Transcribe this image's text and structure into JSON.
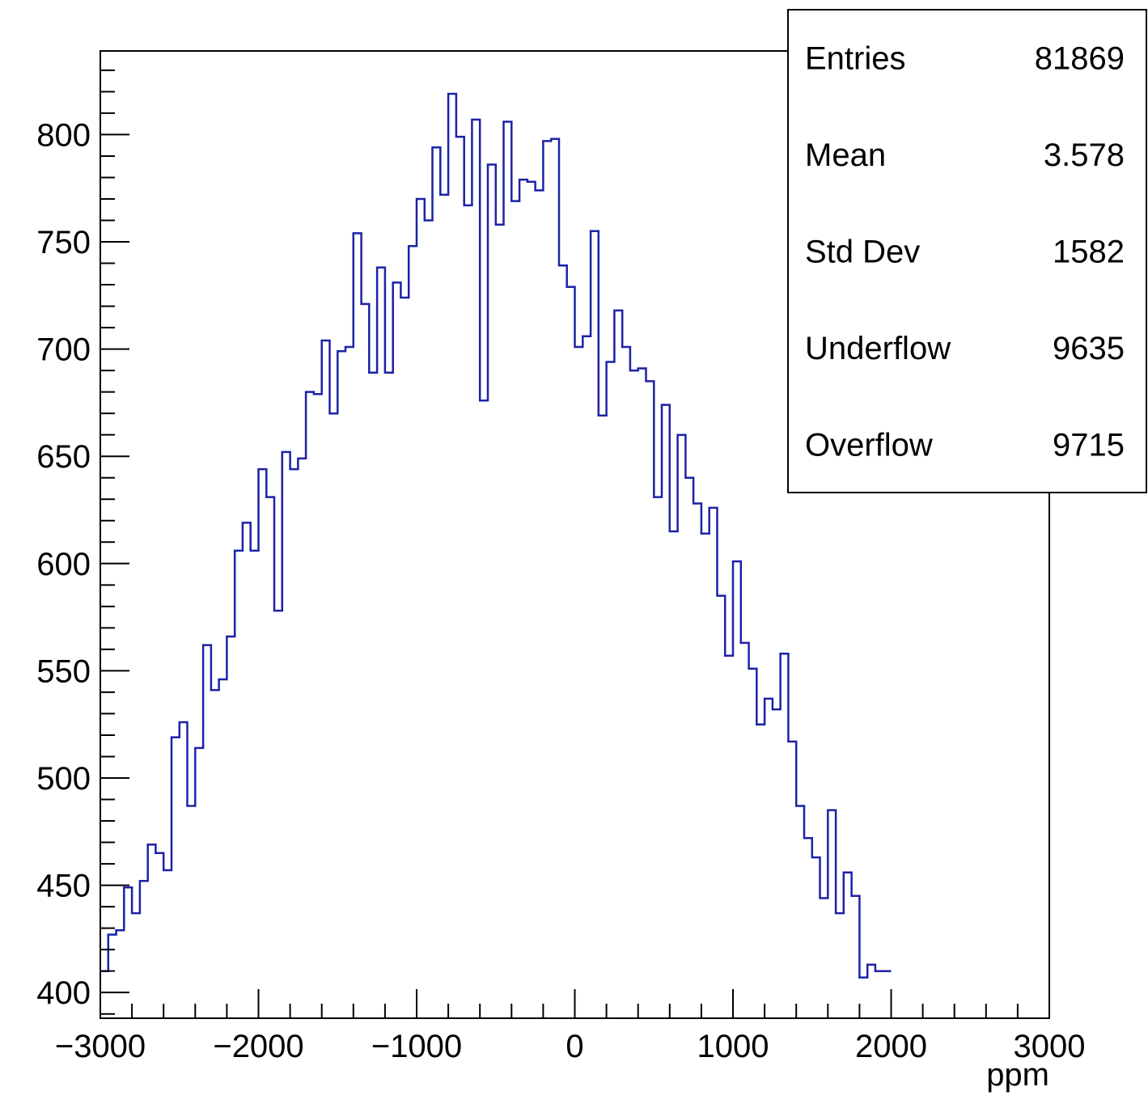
{
  "chart_data": {
    "type": "histogram",
    "title": "",
    "xlabel": "ppm",
    "ylabel": "",
    "xlim": [
      -3000,
      3000
    ],
    "ylim": [
      388,
      839
    ],
    "x_ticks": [
      -3000,
      -2000,
      -1000,
      0,
      1000,
      2000,
      3000
    ],
    "x_tick_labels": [
      "−3000",
      "−2000",
      "−1000",
      "0",
      "1000",
      "2000",
      "3000"
    ],
    "y_ticks": [
      400,
      450,
      500,
      550,
      600,
      650,
      700,
      750,
      800
    ],
    "y_tick_labels": [
      "400",
      "450",
      "500",
      "550",
      "600",
      "650",
      "700",
      "750",
      "800"
    ],
    "grid": false,
    "legend": "none",
    "line_color": "#1c22a6",
    "series": [
      {
        "bin_edges_start": -3000,
        "bin_width": 50,
        "counts": [
          410,
          427,
          429,
          449,
          437,
          452,
          469,
          465,
          457,
          519,
          526,
          487,
          514,
          562,
          541,
          546,
          566,
          606,
          619,
          606,
          644,
          631,
          578,
          652,
          644,
          649,
          680,
          679,
          704,
          670,
          699,
          701,
          754,
          721,
          689,
          738,
          689,
          731,
          724,
          748,
          770,
          760,
          794,
          772,
          819,
          799,
          767,
          807,
          676,
          786,
          758,
          806,
          769,
          779,
          778,
          774,
          797,
          798,
          739,
          729,
          701,
          706,
          755,
          669,
          694,
          718,
          701,
          690,
          691,
          685,
          631,
          674,
          615,
          660,
          640,
          628,
          614,
          626,
          585,
          557,
          601,
          563,
          551,
          525,
          537,
          532,
          558,
          517,
          487,
          472,
          463,
          444,
          485,
          437,
          456,
          445,
          407,
          413,
          410,
          410
        ]
      }
    ],
    "stats_box": {
      "rows": [
        {
          "label": "Entries",
          "value": "81869"
        },
        {
          "label": "Mean",
          "value": "3.578"
        },
        {
          "label": "Std Dev",
          "value": "1582"
        },
        {
          "label": "Underflow",
          "value": "9635"
        },
        {
          "label": "Overflow",
          "value": "9715"
        }
      ]
    }
  }
}
